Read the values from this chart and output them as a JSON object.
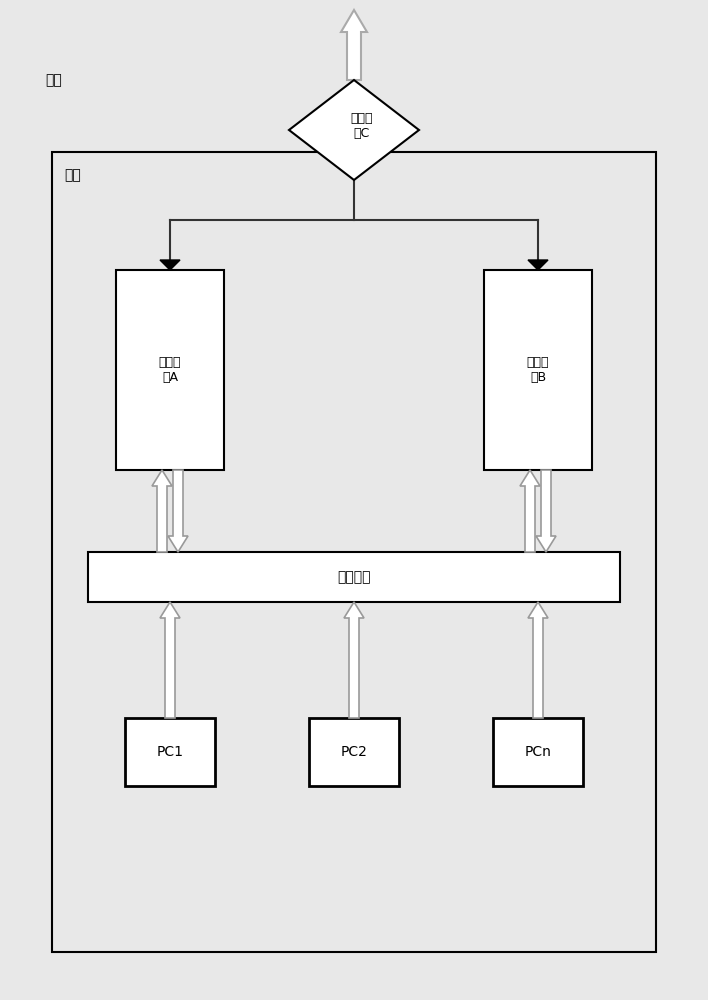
{
  "bg_color": "#e8e8e8",
  "inner_bg": "#e8e8e8",
  "white": "#ffffff",
  "black": "#000000",
  "arrow_edge": "#999999",
  "arrow_face": "#ffffff",
  "line_color": "#333333",
  "label_waiwang": "外网",
  "label_neiwang": "内网",
  "label_C": "网络设\n备C",
  "label_A": "网络设\n备A",
  "label_B": "网络设\n备B",
  "label_office": "办公网络",
  "label_PC1": "PC1",
  "label_PC2": "PC2",
  "label_PCn": "PCn",
  "fig_width": 7.08,
  "fig_height": 10.0,
  "dpi": 100
}
